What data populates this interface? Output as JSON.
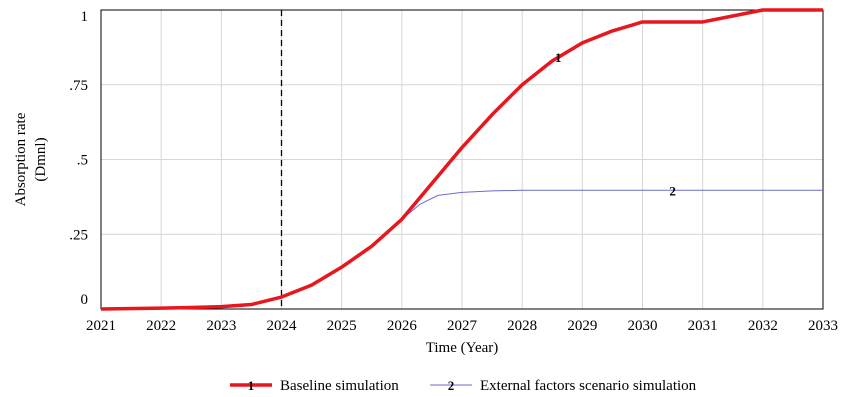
{
  "chart_data": {
    "type": "line",
    "title": "",
    "xlabel": "Time (Year)",
    "ylabel": "Absorption rate",
    "ylabel_unit": "(Dmnl)",
    "xlim": [
      2021,
      2033
    ],
    "ylim": [
      0,
      1
    ],
    "x_ticks": [
      "2021",
      "2022",
      "2023",
      "2024",
      "2025",
      "2026",
      "2027",
      "2028",
      "2029",
      "2030",
      "2031",
      "2032",
      "2033"
    ],
    "y_ticks": [
      {
        "value": 0,
        "label": "0"
      },
      {
        "value": 0.25,
        "label": ".25"
      },
      {
        "value": 0.5,
        "label": ".5"
      },
      {
        "value": 0.75,
        "label": ".75"
      },
      {
        "value": 1,
        "label": "1"
      }
    ],
    "grid": true,
    "reference_line": {
      "x": 2024,
      "style": "dashed"
    },
    "legend_position": "bottom",
    "series": [
      {
        "name": "Baseline simulation",
        "marker": "1",
        "marker_at_x": 2028.6,
        "color": "#e8161d",
        "x": [
          2021,
          2022,
          2022.5,
          2023,
          2023.5,
          2024,
          2024.5,
          2025,
          2025.5,
          2026,
          2026.5,
          2027,
          2027.5,
          2028,
          2028.5,
          2029,
          2029.5,
          2030,
          2031,
          2031.5,
          2032,
          2033
        ],
        "values": [
          0,
          0.003,
          0.005,
          0.008,
          0.015,
          0.04,
          0.08,
          0.14,
          0.21,
          0.3,
          0.42,
          0.54,
          0.65,
          0.75,
          0.83,
          0.89,
          0.93,
          0.96,
          0.96,
          0.98,
          1.0,
          1.0
        ]
      },
      {
        "name": "External factors scenario simulation",
        "marker": "2",
        "marker_at_x": 2030.5,
        "color": "#6b6bd0",
        "x": [
          2021,
          2022,
          2022.5,
          2023,
          2023.5,
          2024,
          2024.5,
          2025,
          2025.5,
          2026,
          2026.3,
          2026.6,
          2027,
          2027.5,
          2028,
          2029,
          2030,
          2031,
          2032,
          2033
        ],
        "values": [
          0,
          0.003,
          0.005,
          0.008,
          0.015,
          0.04,
          0.08,
          0.14,
          0.21,
          0.3,
          0.35,
          0.38,
          0.39,
          0.395,
          0.397,
          0.397,
          0.397,
          0.397,
          0.397,
          0.397
        ]
      }
    ]
  }
}
